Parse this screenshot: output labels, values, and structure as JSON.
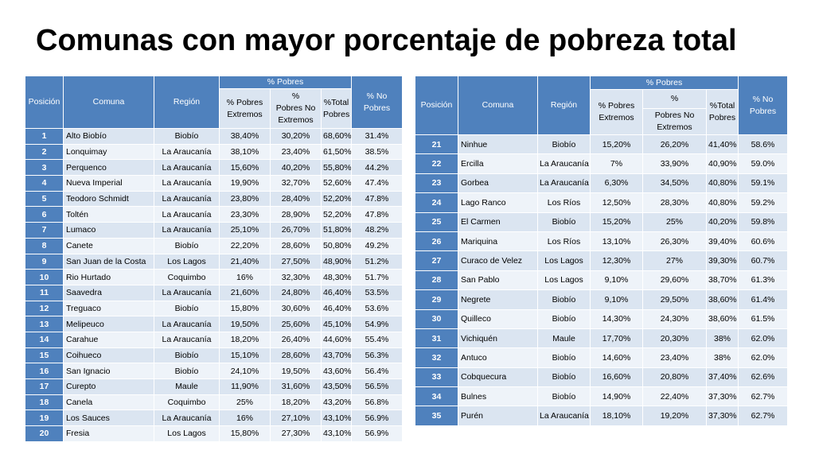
{
  "title": "Comunas con mayor porcentaje de pobreza total",
  "headers": {
    "posicion": "Posición",
    "comuna": "Comuna",
    "region": "Región",
    "pobres": "% Pobres",
    "extremos": "% Pobres Extremos",
    "no_extremos_pct": "%",
    "no_extremos_label": "Pobres No Extremos",
    "total": "%Total Pobres",
    "no_pobres": "% No Pobres"
  },
  "left_rows": [
    [
      "1",
      "Alto Biobío",
      "Biobío",
      "38,40%",
      "30,20%",
      "68,60%",
      "31.4%"
    ],
    [
      "2",
      "Lonquimay",
      "La Araucanía",
      "38,10%",
      "23,40%",
      "61,50%",
      "38.5%"
    ],
    [
      "3",
      "Perquenco",
      "La Araucanía",
      "15,60%",
      "40,20%",
      "55,80%",
      "44.2%"
    ],
    [
      "4",
      "Nueva Imperial",
      "La Araucanía",
      "19,90%",
      "32,70%",
      "52,60%",
      "47.4%"
    ],
    [
      "5",
      "Teodoro Schmidt",
      "La Araucanía",
      "23,80%",
      "28,40%",
      "52,20%",
      "47.8%"
    ],
    [
      "6",
      "Toltén",
      "La Araucanía",
      "23,30%",
      "28,90%",
      "52,20%",
      "47.8%"
    ],
    [
      "7",
      "Lumaco",
      "La Araucanía",
      "25,10%",
      "26,70%",
      "51,80%",
      "48.2%"
    ],
    [
      "8",
      "Canete",
      "Biobío",
      "22,20%",
      "28,60%",
      "50,80%",
      "49.2%"
    ],
    [
      "9",
      "San Juan de la Costa",
      "Los Lagos",
      "21,40%",
      "27,50%",
      "48,90%",
      "51.2%"
    ],
    [
      "10",
      "Rio Hurtado",
      "Coquimbo",
      "16%",
      "32,30%",
      "48,30%",
      "51.7%"
    ],
    [
      "11",
      "Saavedra",
      "La Araucanía",
      "21,60%",
      "24,80%",
      "46,40%",
      "53.5%"
    ],
    [
      "12",
      "Treguaco",
      "Biobío",
      "15,80%",
      "30,60%",
      "46,40%",
      "53.6%"
    ],
    [
      "13",
      "Melipeuco",
      "La Araucanía",
      "19,50%",
      "25,60%",
      "45,10%",
      "54.9%"
    ],
    [
      "14",
      "Carahue",
      "La Araucanía",
      "18,20%",
      "26,40%",
      "44,60%",
      "55.4%"
    ],
    [
      "15",
      "Coihueco",
      "Biobío",
      "15,10%",
      "28,60%",
      "43,70%",
      "56.3%"
    ],
    [
      "16",
      "San Ignacio",
      "Biobío",
      "24,10%",
      "19,50%",
      "43,60%",
      "56.4%"
    ],
    [
      "17",
      "Curepto",
      "Maule",
      "11,90%",
      "31,60%",
      "43,50%",
      "56.5%"
    ],
    [
      "18",
      "Canela",
      "Coquimbo",
      "25%",
      "18,20%",
      "43,20%",
      "56.8%"
    ],
    [
      "19",
      "Los Sauces",
      "La Araucanía",
      "16%",
      "27,10%",
      "43,10%",
      "56.9%"
    ],
    [
      "20",
      "Fresia",
      "Los Lagos",
      "15,80%",
      "27,30%",
      "43,10%",
      "56.9%"
    ]
  ],
  "right_rows": [
    [
      "21",
      "Ninhue",
      "Biobío",
      "15,20%",
      "26,20%",
      "41,40%",
      "58.6%"
    ],
    [
      "22",
      "Ercilla",
      "La Araucanía",
      "7%",
      "33,90%",
      "40,90%",
      "59.0%"
    ],
    [
      "23",
      "Gorbea",
      "La Araucanía",
      "6,30%",
      "34,50%",
      "40,80%",
      "59.1%"
    ],
    [
      "24",
      "Lago Ranco",
      "Los Ríos",
      "12,50%",
      "28,30%",
      "40,80%",
      "59.2%"
    ],
    [
      "25",
      "El Carmen",
      "Biobío",
      "15,20%",
      "25%",
      "40,20%",
      "59.8%"
    ],
    [
      "26",
      "Mariquina",
      "Los Ríos",
      "13,10%",
      "26,30%",
      "39,40%",
      "60.6%"
    ],
    [
      "27",
      "Curaco de Velez",
      "Los Lagos",
      "12,30%",
      "27%",
      "39,30%",
      "60.7%"
    ],
    [
      "28",
      "San Pablo",
      "Los Lagos",
      "9,10%",
      "29,60%",
      "38,70%",
      "61.3%"
    ],
    [
      "29",
      "Negrete",
      "Biobío",
      "9,10%",
      "29,50%",
      "38,60%",
      "61.4%"
    ],
    [
      "30",
      "Quilleco",
      "Biobío",
      "14,30%",
      "24,30%",
      "38,60%",
      "61.5%"
    ],
    [
      "31",
      "Vichiquén",
      "Maule",
      "17,70%",
      "20,30%",
      "38%",
      "62.0%"
    ],
    [
      "32",
      "Antuco",
      "Biobío",
      "14,60%",
      "23,40%",
      "38%",
      "62.0%"
    ],
    [
      "33",
      "Cobquecura",
      "Biobío",
      "16,60%",
      "20,80%",
      "37,40%",
      "62.6%"
    ],
    [
      "34",
      "Bulnes",
      "Biobío",
      "14,90%",
      "22,40%",
      "37,30%",
      "62.7%"
    ],
    [
      "35",
      "Purén",
      "La Araucanía",
      "18,10%",
      "19,20%",
      "37,30%",
      "62.7%"
    ]
  ]
}
